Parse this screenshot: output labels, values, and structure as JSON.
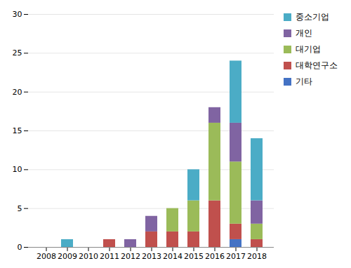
{
  "chart_data": {
    "type": "bar",
    "stacked": true,
    "categories": [
      "2008",
      "2009",
      "2010",
      "2011",
      "2012",
      "2013",
      "2014",
      "2015",
      "2016",
      "2017",
      "2018"
    ],
    "series": [
      {
        "name": "기타",
        "color": "#4472c4",
        "values": [
          0,
          0,
          0,
          0,
          0,
          0,
          0,
          0,
          0,
          1,
          0
        ]
      },
      {
        "name": "대학연구소",
        "color": "#c0504d",
        "values": [
          0,
          0,
          0,
          1,
          0,
          2,
          2,
          2,
          6,
          2,
          1
        ]
      },
      {
        "name": "대기업",
        "color": "#9bbb59",
        "values": [
          0,
          0,
          0,
          0,
          0,
          0,
          3,
          4,
          10,
          8,
          2
        ]
      },
      {
        "name": "개인",
        "color": "#8064a2",
        "values": [
          0,
          0,
          0,
          0,
          1,
          2,
          0,
          0,
          2,
          5,
          3
        ]
      },
      {
        "name": "중소기업",
        "color": "#4bacc6",
        "values": [
          0,
          1,
          0,
          0,
          0,
          0,
          0,
          4,
          0,
          8,
          8
        ]
      }
    ],
    "ylim": [
      0,
      30
    ],
    "yticks": [
      0,
      5,
      10,
      15,
      20,
      25,
      30
    ],
    "grid": true,
    "legend": "right"
  }
}
